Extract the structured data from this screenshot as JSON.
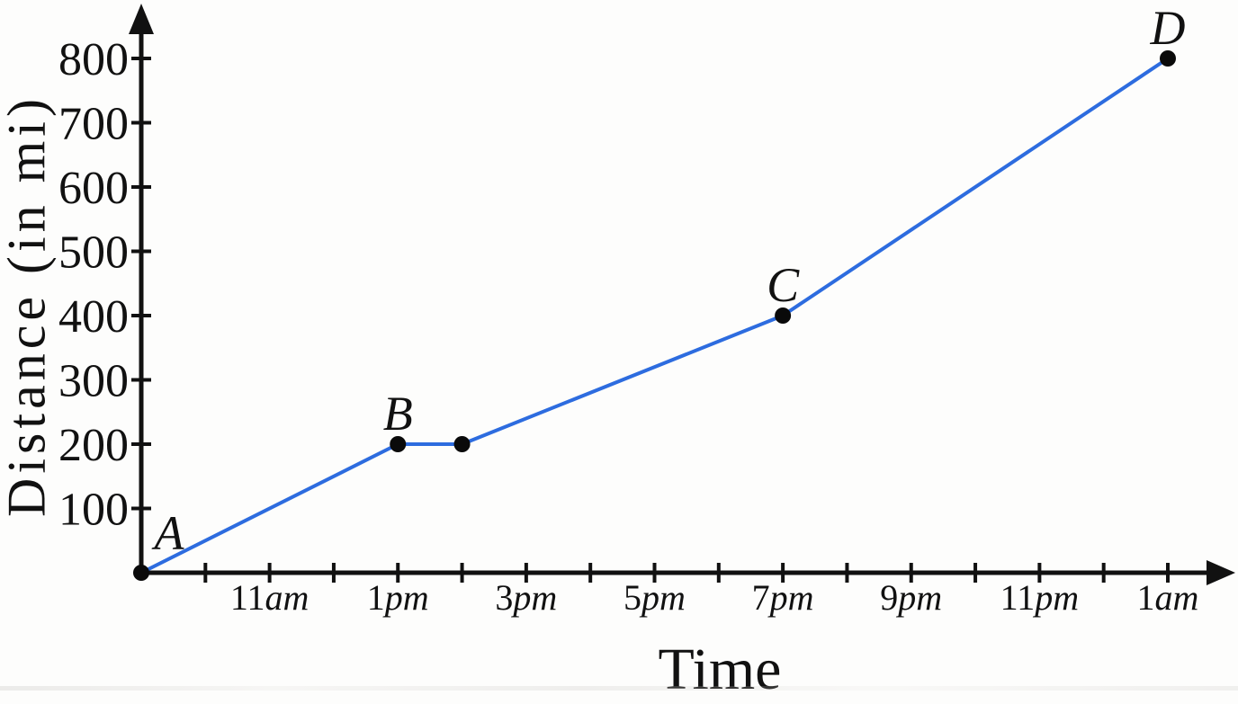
{
  "chart_data": {
    "type": "line",
    "title": "",
    "xlabel": "Time",
    "ylabel": "Distance (in mi)",
    "axis_color": "#111111",
    "background": "#fdfdfc",
    "x_axis": {
      "unit": "hours",
      "tick_count": 16,
      "tick_step_hours": 1,
      "labels": [
        {
          "hour": 2,
          "label": "11am"
        },
        {
          "hour": 4,
          "label": "1pm"
        },
        {
          "hour": 6,
          "label": "3pm"
        },
        {
          "hour": 8,
          "label": "5pm"
        },
        {
          "hour": 10,
          "label": "7pm"
        },
        {
          "hour": 12,
          "label": "9pm"
        },
        {
          "hour": 14,
          "label": "11pm"
        },
        {
          "hour": 16,
          "label": "1am"
        }
      ]
    },
    "y_axis": {
      "ticks": [
        100,
        200,
        300,
        400,
        500,
        600,
        700,
        800
      ],
      "range": [
        0,
        800
      ]
    },
    "series": [
      {
        "name": "distance-vs-time",
        "color": "#2d6cdf",
        "point_color": "#0a0a0a",
        "points": [
          {
            "label": "A",
            "hour": 0,
            "time": "9am",
            "mi": 0
          },
          {
            "label": "B",
            "hour": 4,
            "time": "1pm",
            "mi": 200
          },
          {
            "label": "",
            "hour": 5,
            "time": "2pm",
            "mi": 200
          },
          {
            "label": "C",
            "hour": 10,
            "time": "7pm",
            "mi": 400
          },
          {
            "label": "D",
            "hour": 16,
            "time": "1am",
            "mi": 800
          }
        ]
      }
    ]
  }
}
